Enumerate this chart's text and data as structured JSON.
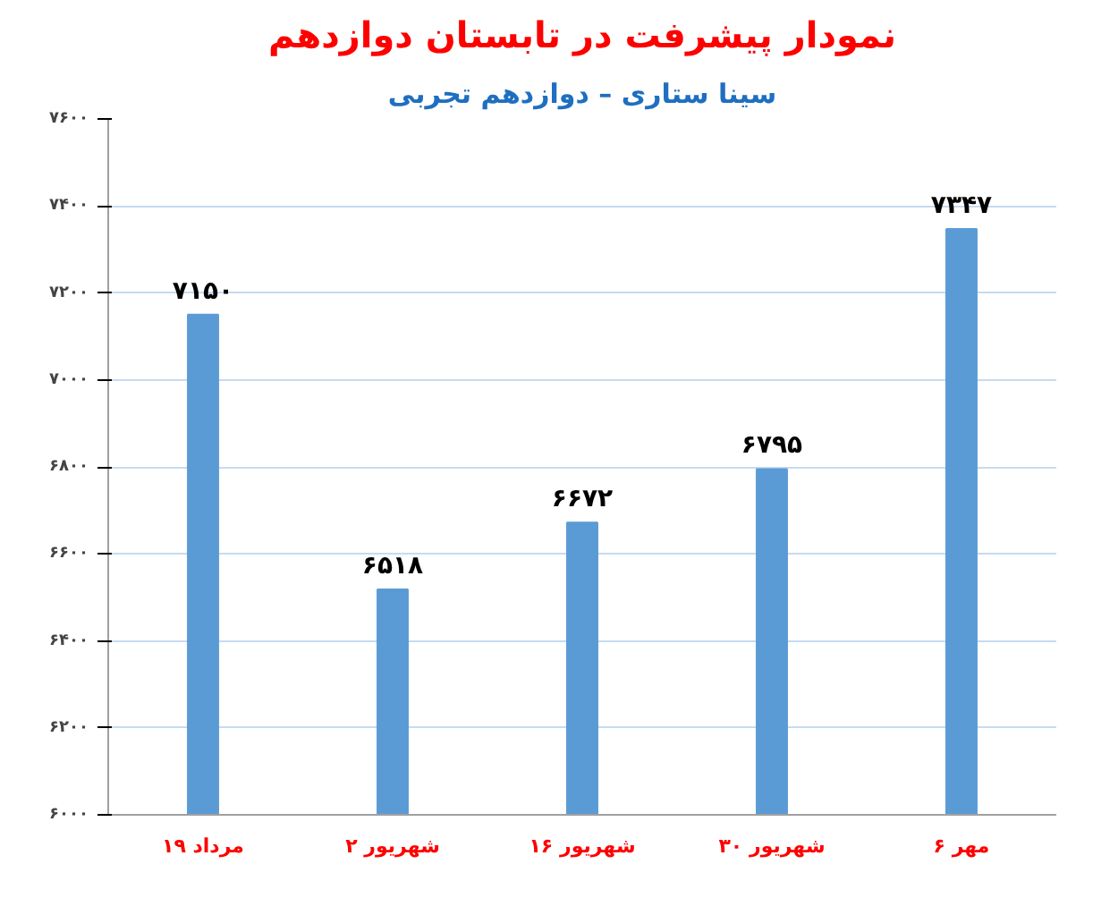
{
  "chart_data": {
    "type": "bar",
    "title": "نمودار پیشرفت در تابستان دوازدهم",
    "subtitle": "سینا ستاری – دوازدهم تجربی",
    "categories": [
      "۱۹ مرداد",
      "۲ شهریور",
      "۱۶ شهریور",
      "۳۰ شهریور",
      "۶ مهر"
    ],
    "values": [
      7150,
      6518,
      6672,
      6795,
      7347
    ],
    "value_labels": [
      "۷۱۵۰",
      "۶۵۱۸",
      "۶۶۷۲",
      "۶۷۹۵",
      "۷۳۴۷"
    ],
    "color": "#5b9bd5",
    "ylim": [
      6000,
      7600
    ],
    "yticks": [
      {
        "value": 6000,
        "label": "۶۰۰۰"
      },
      {
        "value": 6200,
        "label": "۶۲۰۰"
      },
      {
        "value": 6400,
        "label": "۶۴۰۰"
      },
      {
        "value": 6600,
        "label": "۶۶۰۰"
      },
      {
        "value": 6800,
        "label": "۶۸۰۰"
      },
      {
        "value": 7000,
        "label": "۷۰۰۰"
      },
      {
        "value": 7200,
        "label": "۷۲۰۰"
      },
      {
        "value": 7400,
        "label": "۷۴۰۰"
      },
      {
        "value": 7600,
        "label": "۷۶۰۰"
      }
    ],
    "grid": "y"
  }
}
